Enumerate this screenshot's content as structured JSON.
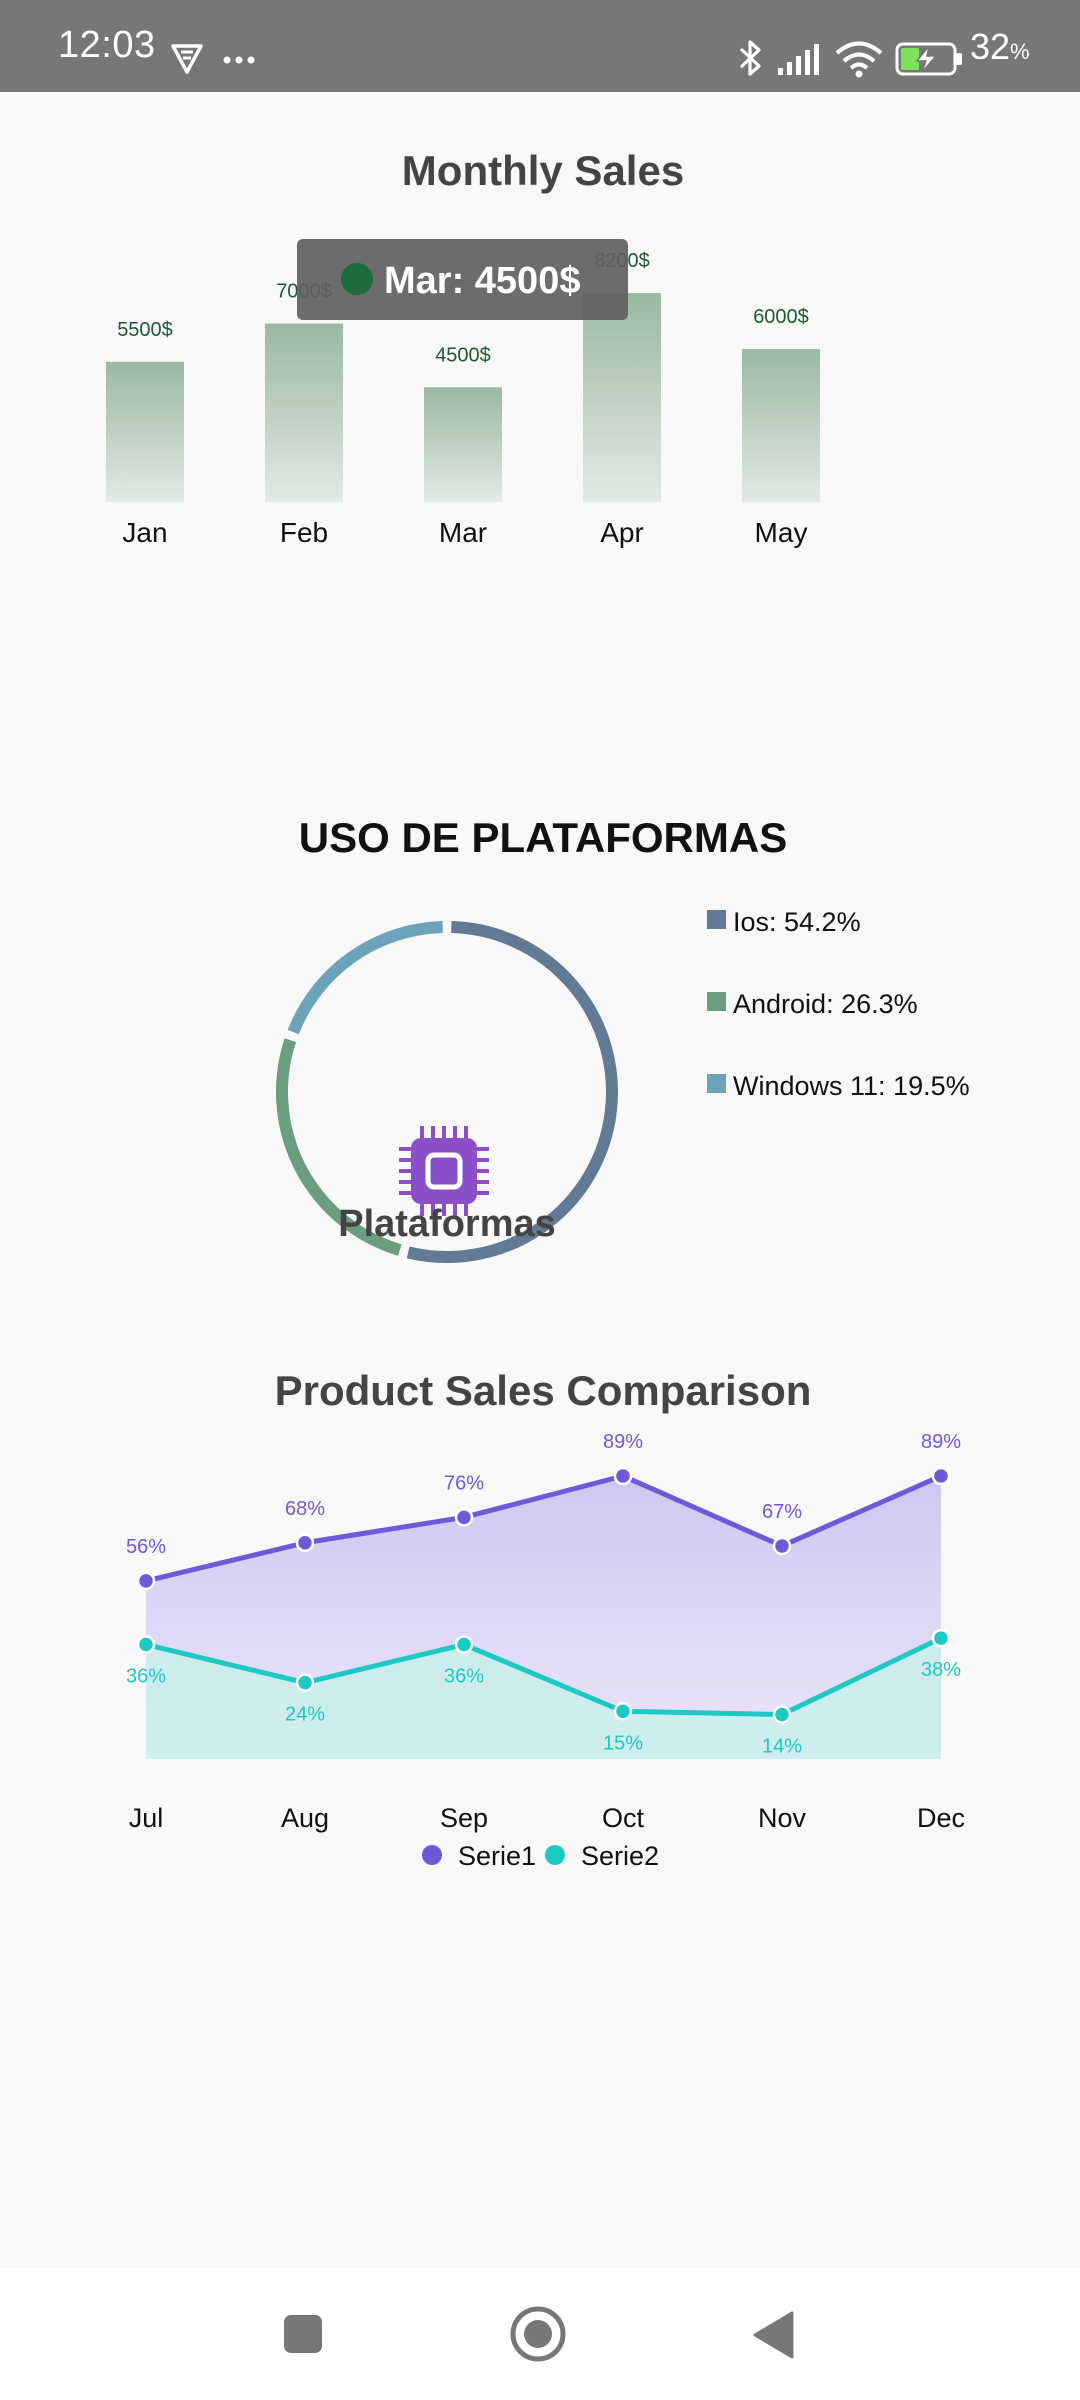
{
  "status_bar": {
    "time": "12:03",
    "battery_level": "32",
    "battery_unit": "%",
    "icons": [
      "notification-shield-icon",
      "more-dots-icon",
      "bluetooth-icon",
      "signal-icon",
      "wifi-icon",
      "battery-charging-icon"
    ]
  },
  "bar_chart": {
    "tooltip": "Mar: 4500$",
    "tooltip_dot_color": "#1e6b3c",
    "label_color": "#1f5a33",
    "bar_color_top": "#9ab8a4",
    "bar_color_bottom": "#e2e9e4"
  },
  "donut_chart": {
    "center_label": "Plataformas",
    "center_icon": "chip-icon",
    "center_icon_color": "#8b4fc9",
    "legend": [
      {
        "label": "Ios: 54.2%",
        "color": "#627a94"
      },
      {
        "label": "Android: 26.3%",
        "color": "#6a9e7e"
      },
      {
        "label": "Windows 11: 19.5%",
        "color": "#6ca3b8"
      }
    ]
  },
  "line_chart": {
    "series_colors": [
      "#7059d8",
      "#1ec9c4"
    ],
    "area_colors": [
      "#cfc7f0",
      "#c9efec"
    ]
  },
  "chart_data": [
    {
      "type": "bar",
      "title": "Monthly Sales",
      "categories": [
        "Jan",
        "Feb",
        "Mar",
        "Apr",
        "May"
      ],
      "values": [
        5500,
        7000,
        4500,
        8200,
        6000
      ],
      "value_labels": [
        "5500$",
        "7000$",
        "4500$",
        "8200$",
        "6000$"
      ],
      "ylim": [
        0,
        8200
      ],
      "grid": false
    },
    {
      "type": "pie",
      "title": "USO DE PLATAFORMAS",
      "categories": [
        "Ios",
        "Android",
        "Windows 11"
      ],
      "values": [
        54.2,
        26.3,
        19.5
      ],
      "legend_position": "right"
    },
    {
      "type": "area",
      "title": "Product Sales Comparison",
      "categories": [
        "Jul",
        "Aug",
        "Sep",
        "Oct",
        "Nov",
        "Dec"
      ],
      "series": [
        {
          "name": "Serie1",
          "values": [
            56,
            68,
            76,
            89,
            67,
            89
          ],
          "labels": [
            "56%",
            "68%",
            "76%",
            "89%",
            "67%",
            "89%"
          ]
        },
        {
          "name": "Serie2",
          "values": [
            36,
            24,
            36,
            15,
            14,
            38
          ],
          "labels": [
            "36%",
            "24%",
            "36%",
            "15%",
            "14%",
            "38%"
          ]
        }
      ],
      "ylim": [
        0,
        89
      ],
      "grid": false,
      "legend_position": "bottom"
    }
  ]
}
